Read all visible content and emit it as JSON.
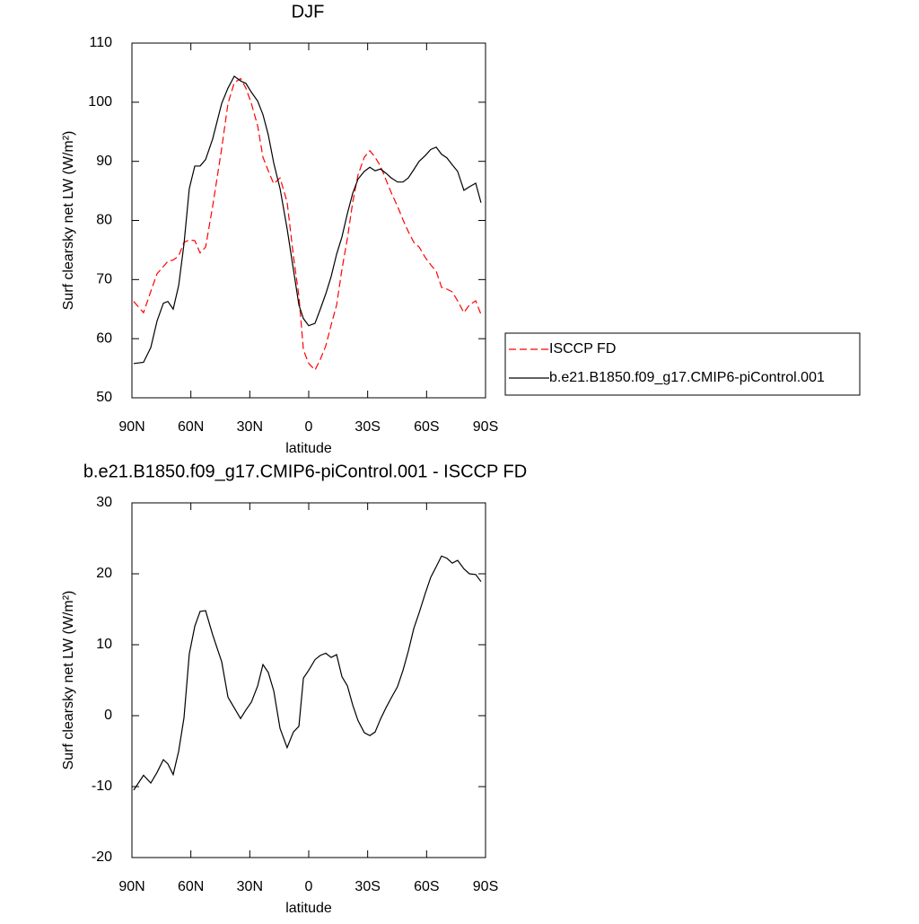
{
  "chart_data": [
    {
      "type": "line",
      "title": "DJF",
      "xlabel": "latitude",
      "ylabel": "Surf clearsky net LW (W/m²)",
      "xlim": [
        90,
        -90
      ],
      "ylim": [
        50,
        110
      ],
      "xticks": [
        {
          "value": 90,
          "label": "90N"
        },
        {
          "value": 60,
          "label": "60N"
        },
        {
          "value": 30,
          "label": "30N"
        },
        0,
        {
          "value": -30,
          "label": "30S"
        },
        {
          "value": -60,
          "label": "60S"
        },
        {
          "value": -90,
          "label": "90S"
        }
      ],
      "yticks": [
        50,
        60,
        70,
        80,
        90,
        100,
        110
      ],
      "legend": "right",
      "x": [
        89.1,
        84.1,
        80.4,
        77.2,
        74.0,
        71.7,
        69.0,
        66.2,
        63.5,
        60.8,
        58.0,
        55.3,
        52.5,
        48.9,
        44.3,
        41.1,
        37.9,
        34.7,
        32.0,
        29.2,
        26.0,
        23.3,
        20.6,
        17.8,
        14.6,
        11.0,
        7.8,
        5.0,
        2.7,
        0.0,
        -3.2,
        -5.9,
        -8.7,
        -11.4,
        -14.2,
        -16.9,
        -19.7,
        -22.4,
        -25.1,
        -28.3,
        -31.1,
        -33.8,
        -36.5,
        -39.3,
        -42.0,
        -45.2,
        -48.0,
        -50.7,
        -53.5,
        -56.2,
        -59.4,
        -62.1,
        -64.9,
        -67.6,
        -70.3,
        -73.1,
        -75.8,
        -79.0,
        -81.8,
        -85.0,
        -87.7
      ],
      "series": [
        {
          "name": "ISCCP FD",
          "color": "#ff0000",
          "linestyle": "dashed",
          "values": [
            66.3,
            64.4,
            68,
            71,
            72.2,
            73.1,
            73.3,
            74,
            76.3,
            76.7,
            76.6,
            74.5,
            75.5,
            82.4,
            92.2,
            99.8,
            103.3,
            104,
            102.4,
            99.8,
            96,
            90.7,
            88.4,
            86.2,
            87.2,
            83.1,
            74,
            67.2,
            58.1,
            55.8,
            54.7,
            56.5,
            58.8,
            62.3,
            65.7,
            71.7,
            77,
            83.1,
            87.7,
            90.7,
            91.8,
            90.7,
            89.2,
            86.9,
            84.7,
            82.4,
            80.1,
            78.1,
            76.3,
            75.5,
            73.7,
            72.5,
            71.4,
            68.7,
            68.4,
            67.9,
            66.4,
            64.4,
            65.7,
            66.4,
            64.1
          ]
        },
        {
          "name": "b.e21.B1850.f09_g17.CMIP6-piControl.001",
          "color": "#000000",
          "linestyle": "solid",
          "values": [
            55.8,
            56,
            58.5,
            63,
            66,
            66.3,
            65,
            69,
            76,
            85.4,
            89.2,
            89.2,
            90.3,
            93.8,
            99.8,
            102.4,
            104.4,
            103.6,
            103.2,
            101.7,
            100.2,
            97.9,
            94.5,
            89.7,
            85.4,
            78.6,
            71.7,
            65.7,
            63.4,
            62.2,
            62.6,
            65,
            67.6,
            70.5,
            74.3,
            77.2,
            81.2,
            84.6,
            87,
            88.3,
            89,
            88.4,
            88.7,
            88,
            87.2,
            86.5,
            86.5,
            87.2,
            88.6,
            90,
            91,
            92,
            92.4,
            91.2,
            90.6,
            89.4,
            88.3,
            85.1,
            85.7,
            86.3,
            83
          ]
        }
      ]
    },
    {
      "type": "line",
      "title": "b.e21.B1850.f09_g17.CMIP6-piControl.001 - ISCCP FD",
      "xlabel": "latitude",
      "ylabel": "Surf clearsky net LW (W/m²)",
      "xlim": [
        90,
        -90
      ],
      "ylim": [
        -20,
        30
      ],
      "xticks": [
        {
          "value": 90,
          "label": "90N"
        },
        {
          "value": 60,
          "label": "60N"
        },
        {
          "value": 30,
          "label": "30N"
        },
        0,
        {
          "value": -30,
          "label": "30S"
        },
        {
          "value": -60,
          "label": "60S"
        },
        {
          "value": -90,
          "label": "90S"
        }
      ],
      "yticks": [
        -20,
        -10,
        0,
        10,
        20,
        30
      ],
      "x": [
        89.1,
        84.1,
        80.4,
        77.2,
        74.0,
        71.7,
        69.0,
        66.2,
        63.5,
        60.8,
        58.0,
        55.3,
        52.5,
        48.9,
        44.3,
        41.1,
        37.9,
        34.7,
        32.0,
        29.2,
        26.0,
        23.3,
        20.6,
        17.8,
        14.6,
        11.0,
        7.8,
        5.0,
        2.7,
        0.0,
        -3.2,
        -5.9,
        -8.7,
        -11.4,
        -14.2,
        -16.9,
        -19.7,
        -22.4,
        -25.1,
        -28.3,
        -31.1,
        -33.8,
        -36.5,
        -39.3,
        -42.0,
        -45.2,
        -48.0,
        -50.7,
        -53.5,
        -56.2,
        -59.4,
        -62.1,
        -64.9,
        -67.6,
        -70.3,
        -73.1,
        -75.8,
        -79.0,
        -81.8,
        -85.0,
        -87.7
      ],
      "series": [
        {
          "color": "#000000",
          "linestyle": "solid",
          "values": [
            -10.5,
            -8.4,
            -9.5,
            -8,
            -6.2,
            -6.8,
            -8.3,
            -5,
            -0.3,
            8.7,
            12.6,
            14.7,
            14.8,
            11.4,
            7.6,
            2.6,
            1.1,
            -0.4,
            0.8,
            1.9,
            4.2,
            7.2,
            6.1,
            3.5,
            -1.8,
            -4.5,
            -2.3,
            -1.5,
            5.3,
            6.4,
            7.9,
            8.5,
            8.8,
            8.2,
            8.6,
            5.5,
            4.2,
            1.5,
            -0.7,
            -2.4,
            -2.8,
            -2.3,
            -0.5,
            1.1,
            2.5,
            4.1,
            6.4,
            9.1,
            12.3,
            14.5,
            17.3,
            19.5,
            21,
            22.5,
            22.2,
            21.5,
            21.9,
            20.7,
            20,
            19.9,
            18.9
          ]
        }
      ]
    }
  ]
}
